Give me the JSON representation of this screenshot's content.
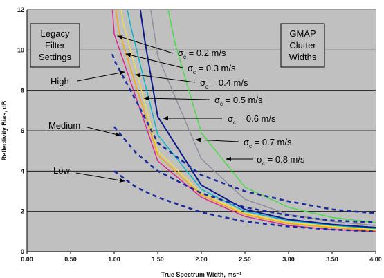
{
  "chart_data": {
    "type": "line",
    "xlabel": "True Spectrum Width, ms⁻¹",
    "ylabel": "Reflectivity Bias, dB",
    "xlim": [
      0,
      4
    ],
    "ylim": [
      0,
      12
    ],
    "x_ticks": [
      "0.00",
      "0.50",
      "1.00",
      "1.50",
      "2.00",
      "2.50",
      "3.00",
      "3.50",
      "4.00"
    ],
    "y_ticks": [
      "0",
      "2",
      "4",
      "6",
      "8",
      "10",
      "12"
    ],
    "grid": "horizontal",
    "background": "#c0c0c0",
    "boxes": [
      {
        "lines": [
          "Legacy",
          "Filter",
          "Settings"
        ]
      },
      {
        "lines": [
          "GMAP",
          "Clutter",
          "Widths"
        ]
      }
    ],
    "series": [
      {
        "name": "σc = 0.2 m/s",
        "color": "#e0218a",
        "style": "solid",
        "x": [
          0.98,
          1.0,
          1.5,
          2.0,
          2.5,
          3.0,
          3.5,
          4.0
        ],
        "y": [
          12,
          10.8,
          4.5,
          2.7,
          1.75,
          1.3,
          1.1,
          1.0
        ]
      },
      {
        "name": "σc = 0.3 m/s",
        "color": "#ffa500",
        "style": "solid",
        "x": [
          1.02,
          1.05,
          1.5,
          2.0,
          2.5,
          3.0,
          3.5,
          4.0
        ],
        "y": [
          12,
          11.0,
          4.8,
          2.8,
          1.85,
          1.4,
          1.2,
          1.05
        ]
      },
      {
        "name": "σc = 0.4 m/s",
        "color": "#f0e040",
        "style": "solid",
        "x": [
          1.08,
          1.1,
          1.5,
          2.0,
          2.5,
          3.0,
          3.5,
          4.0
        ],
        "y": [
          12,
          11.4,
          5.0,
          2.9,
          1.9,
          1.45,
          1.25,
          1.1
        ]
      },
      {
        "name": "σc = 0.5 m/s",
        "color": "#00b4c8",
        "style": "solid",
        "x": [
          1.15,
          1.2,
          1.5,
          2.0,
          2.5,
          3.0,
          3.5,
          4.0
        ],
        "y": [
          12,
          11.0,
          5.8,
          3.1,
          2.0,
          1.55,
          1.3,
          1.15
        ]
      },
      {
        "name": "σc = 0.6 m/s",
        "color": "#0a1a8c",
        "style": "solid",
        "x": [
          1.3,
          1.35,
          1.5,
          2.0,
          2.5,
          3.0,
          3.5,
          4.0
        ],
        "y": [
          12,
          10.5,
          6.7,
          3.3,
          2.1,
          1.6,
          1.35,
          1.2
        ]
      },
      {
        "name": "σc = 0.7 m/s",
        "color": "#8c8c9c",
        "style": "solid",
        "x": [
          1.42,
          1.5,
          2.0,
          2.5,
          3.0,
          3.5,
          4.0
        ],
        "y": [
          12,
          9.7,
          4.6,
          2.6,
          1.85,
          1.5,
          1.3
        ]
      },
      {
        "name": "σc = 0.8 m/s",
        "color": "#44dd44",
        "style": "solid",
        "x": [
          1.62,
          1.7,
          2.0,
          2.5,
          3.0,
          3.5,
          4.0
        ],
        "y": [
          12,
          10.3,
          5.9,
          3.2,
          2.2,
          1.7,
          1.45
        ]
      },
      {
        "name": "High",
        "color": "#1a2aa0",
        "style": "dashed",
        "x": [
          0.98,
          1.0,
          1.25,
          1.5,
          2.0,
          2.5,
          3.0,
          3.5,
          4.0
        ],
        "y": [
          9.8,
          9.5,
          7.5,
          5.4,
          3.8,
          3.0,
          2.5,
          2.1,
          1.9
        ]
      },
      {
        "name": "Medium",
        "color": "#1a2aa0",
        "style": "dashed",
        "x": [
          1.0,
          1.25,
          1.5,
          2.0,
          2.5,
          3.0,
          3.5,
          4.0
        ],
        "y": [
          6.2,
          4.9,
          4.0,
          2.9,
          2.2,
          1.8,
          1.55,
          1.45
        ]
      },
      {
        "name": "Low",
        "color": "#1a2aa0",
        "style": "dashed",
        "x": [
          1.0,
          1.25,
          1.5,
          2.0,
          2.5,
          3.0,
          3.5,
          4.0
        ],
        "y": [
          4.0,
          3.2,
          2.7,
          1.95,
          1.5,
          1.25,
          1.1,
          1.0
        ]
      }
    ],
    "annotations": [
      {
        "series": "σc = 0.2 m/s",
        "prefix": "σ",
        "sub": "c",
        "suffix": " = 0.2 m/s"
      },
      {
        "series": "σc = 0.3 m/s",
        "prefix": "σ",
        "sub": "c",
        "suffix": " = 0.3 m/s"
      },
      {
        "series": "σc = 0.4 m/s",
        "prefix": "σ",
        "sub": "c",
        "suffix": " = 0.4 m/s"
      },
      {
        "series": "σc = 0.5 m/s",
        "prefix": "σ",
        "sub": "c",
        "suffix": " = 0.5 m/s"
      },
      {
        "series": "σc = 0.6 m/s",
        "prefix": "σ",
        "sub": "c",
        "suffix": " = 0.6 m/s"
      },
      {
        "series": "σc = 0.7 m/s",
        "prefix": "σ",
        "sub": "c",
        "suffix": " = 0.7 m/s"
      },
      {
        "series": "σc = 0.8 m/s",
        "prefix": "σ",
        "sub": "c",
        "suffix": " = 0.8 m/s"
      },
      {
        "series": "High",
        "text": "High"
      },
      {
        "series": "Medium",
        "text": "Medium"
      },
      {
        "series": "Low",
        "text": "Low"
      }
    ]
  }
}
